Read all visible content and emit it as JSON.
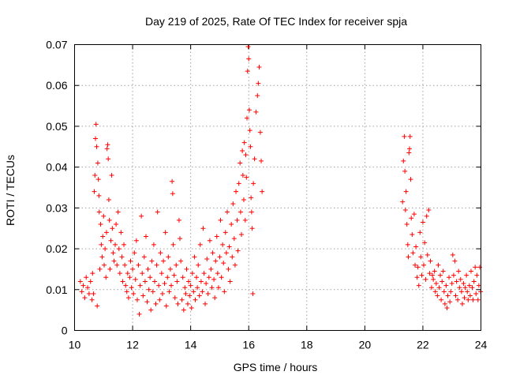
{
  "chart_data": {
    "type": "scatter",
    "title": "Day 219 of 2025, Rate Of TEC Index for receiver spja",
    "xlabel": "GPS time / hours",
    "ylabel": "ROTI / TECUs",
    "xlim": [
      10,
      24
    ],
    "ylim": [
      0,
      0.07
    ],
    "xticks": [
      10,
      12,
      14,
      16,
      18,
      20,
      22,
      24
    ],
    "xtick_labels": [
      "10",
      "12",
      "14",
      "16",
      "18",
      "20",
      "22",
      "24"
    ],
    "yticks": [
      0,
      0.01,
      0.02,
      0.03,
      0.04,
      0.05,
      0.06,
      0.07
    ],
    "ytick_labels": [
      "0",
      "0.01",
      "0.02",
      "0.03",
      "0.04",
      "0.05",
      "0.06",
      "0.07"
    ],
    "grid": true,
    "marker": "+",
    "color": "#ff0000",
    "points": [
      [
        10.2,
        0.012
      ],
      [
        10.25,
        0.0095
      ],
      [
        10.3,
        0.011
      ],
      [
        10.35,
        0.008
      ],
      [
        10.4,
        0.013
      ],
      [
        10.45,
        0.0105
      ],
      [
        10.5,
        0.009
      ],
      [
        10.55,
        0.012
      ],
      [
        10.6,
        0.0075
      ],
      [
        10.62,
        0.014
      ],
      [
        10.65,
        0.009
      ],
      [
        10.68,
        0.034
      ],
      [
        10.7,
        0.038
      ],
      [
        10.72,
        0.047
      ],
      [
        10.74,
        0.0505
      ],
      [
        10.76,
        0.045
      ],
      [
        10.78,
        0.006
      ],
      [
        10.8,
        0.041
      ],
      [
        10.82,
        0.037
      ],
      [
        10.84,
        0.033
      ],
      [
        10.85,
        0.029
      ],
      [
        10.87,
        0.015
      ],
      [
        10.9,
        0.026
      ],
      [
        10.92,
        0.021
      ],
      [
        10.95,
        0.018
      ],
      [
        10.97,
        0.023
      ],
      [
        11.0,
        0.028
      ],
      [
        11.02,
        0.016
      ],
      [
        11.05,
        0.02
      ],
      [
        11.08,
        0.013
      ],
      [
        11.1,
        0.024
      ],
      [
        11.12,
        0.0445
      ],
      [
        11.14,
        0.0455
      ],
      [
        11.16,
        0.042
      ],
      [
        11.18,
        0.032
      ],
      [
        11.2,
        0.027
      ],
      [
        11.22,
        0.015
      ],
      [
        11.25,
        0.022
      ],
      [
        11.28,
        0.038
      ],
      [
        11.3,
        0.025
      ],
      [
        11.33,
        0.019
      ],
      [
        11.36,
        0.017
      ],
      [
        11.4,
        0.021
      ],
      [
        11.43,
        0.026
      ],
      [
        11.46,
        0.016
      ],
      [
        11.5,
        0.029
      ],
      [
        11.53,
        0.02
      ],
      [
        11.56,
        0.014
      ],
      [
        11.6,
        0.024
      ],
      [
        11.63,
        0.018
      ],
      [
        11.66,
        0.012
      ],
      [
        11.7,
        0.021
      ],
      [
        11.73,
        0.016
      ],
      [
        11.76,
        0.011
      ],
      [
        11.8,
        0.0095
      ],
      [
        11.83,
        0.014
      ],
      [
        11.86,
        0.008
      ],
      [
        11.9,
        0.013
      ],
      [
        11.93,
        0.017
      ],
      [
        11.96,
        0.0105
      ],
      [
        12.0,
        0.015
      ],
      [
        12.03,
        0.009
      ],
      [
        12.06,
        0.019
      ],
      [
        12.1,
        0.0125
      ],
      [
        12.13,
        0.022
      ],
      [
        12.16,
        0.0075
      ],
      [
        12.2,
        0.016
      ],
      [
        12.23,
        0.004
      ],
      [
        12.26,
        0.011
      ],
      [
        12.3,
        0.028
      ],
      [
        12.33,
        0.014
      ],
      [
        12.36,
        0.0085
      ],
      [
        12.4,
        0.018
      ],
      [
        12.43,
        0.012
      ],
      [
        12.46,
        0.023
      ],
      [
        12.5,
        0.007
      ],
      [
        12.53,
        0.015
      ],
      [
        12.56,
        0.01
      ],
      [
        12.6,
        0.013
      ],
      [
        12.63,
        0.005
      ],
      [
        12.66,
        0.017
      ],
      [
        12.7,
        0.0095
      ],
      [
        12.73,
        0.021
      ],
      [
        12.76,
        0.012
      ],
      [
        12.8,
        0.0065
      ],
      [
        12.83,
        0.016
      ],
      [
        12.86,
        0.029
      ],
      [
        12.9,
        0.011
      ],
      [
        12.93,
        0.0075
      ],
      [
        12.96,
        0.019
      ],
      [
        13.0,
        0.014
      ],
      [
        13.03,
        0.009
      ],
      [
        13.06,
        0.017
      ],
      [
        13.1,
        0.0115
      ],
      [
        13.13,
        0.024
      ],
      [
        13.16,
        0.006
      ],
      [
        13.2,
        0.013
      ],
      [
        13.23,
        0.018
      ],
      [
        13.26,
        0.0095
      ],
      [
        13.3,
        0.015
      ],
      [
        13.33,
        0.011
      ],
      [
        13.36,
        0.0365
      ],
      [
        13.38,
        0.0335
      ],
      [
        13.4,
        0.021
      ],
      [
        13.43,
        0.0135
      ],
      [
        13.46,
        0.008
      ],
      [
        13.5,
        0.016
      ],
      [
        13.53,
        0.012
      ],
      [
        13.56,
        0.0065
      ],
      [
        13.6,
        0.027
      ],
      [
        13.63,
        0.0225
      ],
      [
        13.66,
        0.017
      ],
      [
        13.7,
        0.0075
      ],
      [
        13.73,
        0.013
      ],
      [
        13.76,
        0.005
      ],
      [
        13.8,
        0.0105
      ],
      [
        13.83,
        0.009
      ],
      [
        13.86,
        0.015
      ],
      [
        13.9,
        0.0065
      ],
      [
        13.93,
        0.012
      ],
      [
        13.96,
        0.0085
      ],
      [
        14.0,
        0.011
      ],
      [
        14.03,
        0.0055
      ],
      [
        14.06,
        0.014
      ],
      [
        14.1,
        0.0095
      ],
      [
        14.13,
        0.018
      ],
      [
        14.16,
        0.0075
      ],
      [
        14.2,
        0.013
      ],
      [
        14.23,
        0.0105
      ],
      [
        14.26,
        0.016
      ],
      [
        14.3,
        0.0085
      ],
      [
        14.33,
        0.021
      ],
      [
        14.36,
        0.012
      ],
      [
        14.4,
        0.0095
      ],
      [
        14.43,
        0.025
      ],
      [
        14.46,
        0.014
      ],
      [
        14.5,
        0.0065
      ],
      [
        14.53,
        0.0115
      ],
      [
        14.56,
        0.0175
      ],
      [
        14.6,
        0.009
      ],
      [
        14.63,
        0.013
      ],
      [
        14.66,
        0.022
      ],
      [
        14.7,
        0.015
      ],
      [
        14.73,
        0.0105
      ],
      [
        14.76,
        0.019
      ],
      [
        14.8,
        0.0125
      ],
      [
        14.83,
        0.008
      ],
      [
        14.86,
        0.017
      ],
      [
        14.9,
        0.023
      ],
      [
        14.93,
        0.014
      ],
      [
        14.96,
        0.0105
      ],
      [
        15.0,
        0.018
      ],
      [
        15.03,
        0.027
      ],
      [
        15.06,
        0.013
      ],
      [
        15.1,
        0.021
      ],
      [
        15.13,
        0.0165
      ],
      [
        15.16,
        0.0095
      ],
      [
        15.2,
        0.024
      ],
      [
        15.23,
        0.019
      ],
      [
        15.26,
        0.029
      ],
      [
        15.3,
        0.015
      ],
      [
        15.33,
        0.0205
      ],
      [
        15.36,
        0.012
      ],
      [
        15.4,
        0.026
      ],
      [
        15.43,
        0.018
      ],
      [
        15.46,
        0.031
      ],
      [
        15.5,
        0.0225
      ],
      [
        15.53,
        0.016
      ],
      [
        15.56,
        0.034
      ],
      [
        15.6,
        0.027
      ],
      [
        15.63,
        0.0195
      ],
      [
        15.66,
        0.036
      ],
      [
        15.7,
        0.041
      ],
      [
        15.72,
        0.029
      ],
      [
        15.75,
        0.0235
      ],
      [
        15.78,
        0.044
      ],
      [
        15.8,
        0.038
      ],
      [
        15.83,
        0.032
      ],
      [
        15.85,
        0.046
      ],
      [
        15.88,
        0.027
      ],
      [
        15.9,
        0.043
      ],
      [
        15.92,
        0.0375
      ],
      [
        15.94,
        0.052
      ],
      [
        15.96,
        0.0635
      ],
      [
        15.98,
        0.0695
      ],
      [
        16.0,
        0.0665
      ],
      [
        16.02,
        0.054
      ],
      [
        16.04,
        0.049
      ],
      [
        16.06,
        0.045
      ],
      [
        16.08,
        0.0325
      ],
      [
        16.1,
        0.029
      ],
      [
        16.12,
        0.025
      ],
      [
        16.14,
        0.009
      ],
      [
        16.16,
        0.036
      ],
      [
        16.2,
        0.042
      ],
      [
        16.25,
        0.0535
      ],
      [
        16.3,
        0.0575
      ],
      [
        16.33,
        0.0605
      ],
      [
        16.36,
        0.0645
      ],
      [
        16.4,
        0.0485
      ],
      [
        16.43,
        0.0415
      ],
      [
        16.46,
        0.034
      ],
      [
        21.3,
        0.0315
      ],
      [
        21.33,
        0.0415
      ],
      [
        21.36,
        0.0475
      ],
      [
        21.38,
        0.039
      ],
      [
        21.4,
        0.0295
      ],
      [
        21.42,
        0.034
      ],
      [
        21.45,
        0.026
      ],
      [
        21.48,
        0.021
      ],
      [
        21.5,
        0.018
      ],
      [
        21.52,
        0.0435
      ],
      [
        21.54,
        0.0445
      ],
      [
        21.56,
        0.0475
      ],
      [
        21.58,
        0.037
      ],
      [
        21.6,
        0.0275
      ],
      [
        21.63,
        0.0235
      ],
      [
        21.66,
        0.019
      ],
      [
        21.7,
        0.0285
      ],
      [
        21.73,
        0.016
      ],
      [
        21.76,
        0.0205
      ],
      [
        21.8,
        0.013
      ],
      [
        21.83,
        0.0155
      ],
      [
        21.86,
        0.011
      ],
      [
        21.9,
        0.024
      ],
      [
        21.93,
        0.018
      ],
      [
        21.96,
        0.0135
      ],
      [
        22.0,
        0.0265
      ],
      [
        22.03,
        0.016
      ],
      [
        22.06,
        0.0215
      ],
      [
        22.1,
        0.0125
      ],
      [
        22.13,
        0.028
      ],
      [
        22.16,
        0.0185
      ],
      [
        22.2,
        0.0295
      ],
      [
        22.23,
        0.014
      ],
      [
        22.26,
        0.017
      ],
      [
        22.3,
        0.0105
      ],
      [
        22.33,
        0.0135
      ],
      [
        22.36,
        0.0125
      ],
      [
        22.4,
        0.0145
      ],
      [
        22.43,
        0.0095
      ],
      [
        22.46,
        0.0115
      ],
      [
        22.5,
        0.0085
      ],
      [
        22.53,
        0.016
      ],
      [
        22.56,
        0.0105
      ],
      [
        22.6,
        0.0135
      ],
      [
        22.63,
        0.0075
      ],
      [
        22.66,
        0.012
      ],
      [
        22.7,
        0.0145
      ],
      [
        22.73,
        0.0095
      ],
      [
        22.76,
        0.0065
      ],
      [
        22.8,
        0.011
      ],
      [
        22.83,
        0.0055
      ],
      [
        22.86,
        0.0085
      ],
      [
        22.9,
        0.013
      ],
      [
        22.93,
        0.007
      ],
      [
        22.96,
        0.0095
      ],
      [
        23.0,
        0.0115
      ],
      [
        23.03,
        0.0185
      ],
      [
        23.06,
        0.0135
      ],
      [
        23.1,
        0.017
      ],
      [
        23.13,
        0.0085
      ],
      [
        23.16,
        0.012
      ],
      [
        23.2,
        0.0075
      ],
      [
        23.23,
        0.0145
      ],
      [
        23.26,
        0.0105
      ],
      [
        23.3,
        0.0125
      ],
      [
        23.33,
        0.0095
      ],
      [
        23.36,
        0.0065
      ],
      [
        23.4,
        0.0115
      ],
      [
        23.43,
        0.008
      ],
      [
        23.46,
        0.0105
      ],
      [
        23.5,
        0.0135
      ],
      [
        23.53,
        0.0095
      ],
      [
        23.56,
        0.0075
      ],
      [
        23.6,
        0.011
      ],
      [
        23.63,
        0.0085
      ],
      [
        23.66,
        0.0145
      ],
      [
        23.7,
        0.0105
      ],
      [
        23.73,
        0.0075
      ],
      [
        23.76,
        0.012
      ],
      [
        23.8,
        0.0155
      ],
      [
        23.83,
        0.009
      ],
      [
        23.86,
        0.0135
      ],
      [
        23.9,
        0.0075
      ],
      [
        23.93,
        0.011
      ],
      [
        23.96,
        0.0155
      ],
      [
        23.99,
        0.0095
      ]
    ]
  }
}
